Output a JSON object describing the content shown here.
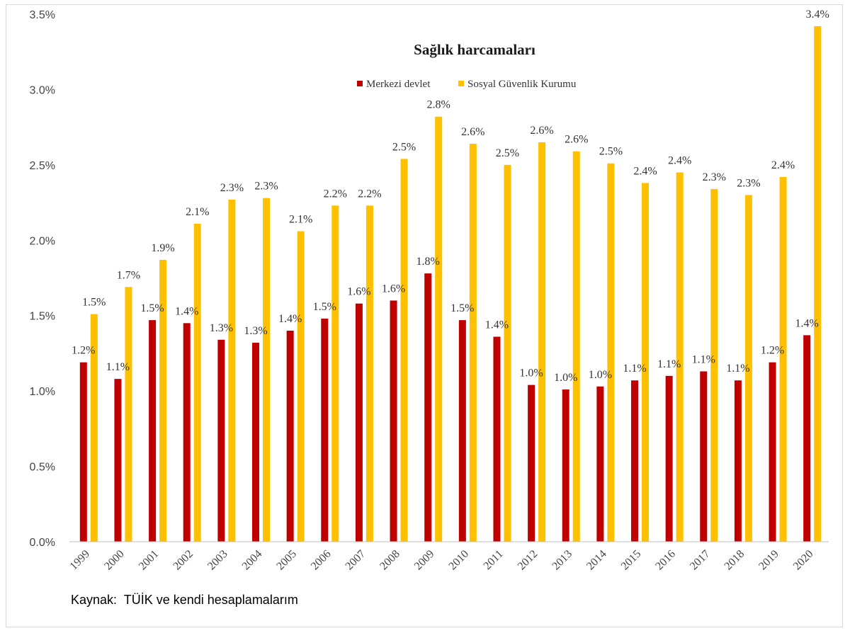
{
  "chart_data": {
    "type": "bar",
    "title": "Sağlık harcamaları",
    "categories": [
      "1999",
      "2000",
      "2001",
      "2002",
      "2003",
      "2004",
      "2005",
      "2006",
      "2007",
      "2008",
      "2009",
      "2010",
      "2011",
      "2012",
      "2013",
      "2014",
      "2015",
      "2016",
      "2017",
      "2018",
      "2019",
      "2020"
    ],
    "series": [
      {
        "name": "Merkezi devlet",
        "color": "#c00000",
        "values": [
          1.19,
          1.08,
          1.47,
          1.45,
          1.34,
          1.32,
          1.4,
          1.48,
          1.58,
          1.6,
          1.78,
          1.47,
          1.36,
          1.04,
          1.01,
          1.03,
          1.07,
          1.1,
          1.13,
          1.07,
          1.19,
          1.37
        ],
        "labels": [
          "1.2%",
          "1.1%",
          "1.5%",
          "1.4%",
          "1.3%",
          "1.3%",
          "1.4%",
          "1.5%",
          "1.6%",
          "1.6%",
          "1.8%",
          "1.5%",
          "1.4%",
          "1.0%",
          "1.0%",
          "1.0%",
          "1.1%",
          "1.1%",
          "1.1%",
          "1.1%",
          "1.2%",
          "1.4%"
        ]
      },
      {
        "name": "Sosyal Güvenlik Kurumu",
        "color": "#ffc000",
        "values": [
          1.51,
          1.69,
          1.87,
          2.11,
          2.27,
          2.28,
          2.06,
          2.23,
          2.23,
          2.54,
          2.82,
          2.64,
          2.5,
          2.65,
          2.59,
          2.51,
          2.38,
          2.45,
          2.34,
          2.3,
          2.42,
          3.42
        ],
        "labels": [
          "1.5%",
          "1.7%",
          "1.9%",
          "2.1%",
          "2.3%",
          "2.3%",
          "2.1%",
          "2.2%",
          "2.2%",
          "2.5%",
          "2.8%",
          "2.6%",
          "2.5%",
          "2.6%",
          "2.6%",
          "2.5%",
          "2.4%",
          "2.4%",
          "2.3%",
          "2.3%",
          "2.4%",
          "3.4%"
        ]
      }
    ],
    "ylim": [
      0,
      3.5
    ],
    "yticks": [
      0,
      0.5,
      1.0,
      1.5,
      2.0,
      2.5,
      3.0,
      3.5
    ],
    "ytick_labels": [
      "0.0%",
      "0.5%",
      "1.0%",
      "1.5%",
      "2.0%",
      "2.5%",
      "3.0%",
      "3.5%"
    ],
    "grid": false,
    "legend_position": "top-center"
  },
  "source_note": "Kaynak:  TÜİK ve kendi hesaplamalarım"
}
